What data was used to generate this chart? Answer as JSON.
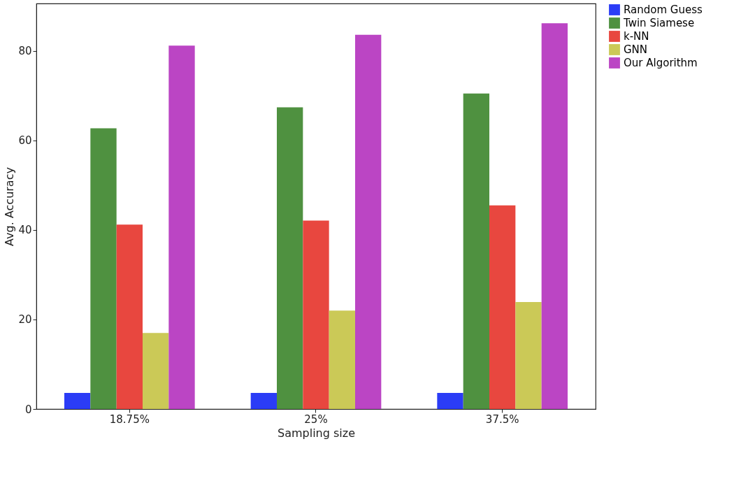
{
  "chart_data": {
    "type": "bar",
    "xlabel": "Sampling size",
    "ylabel": "Avg. Accuracy",
    "categories": [
      "18.75%",
      "25%",
      "37.5%"
    ],
    "series": [
      {
        "name": "Random Guess",
        "color": "#2b3cf6",
        "values": [
          3.6,
          3.6,
          3.6
        ]
      },
      {
        "name": "Twin Siamese",
        "color": "#4f9140",
        "values": [
          62.7,
          67.4,
          70.5
        ]
      },
      {
        "name": "k-NN",
        "color": "#e8473f",
        "values": [
          41.2,
          42.1,
          45.5
        ]
      },
      {
        "name": "GNN",
        "color": "#cbc957",
        "values": [
          17.0,
          22.0,
          23.9
        ]
      },
      {
        "name": "Our Algorithm",
        "color": "#bb45c4",
        "values": [
          81.2,
          83.6,
          86.2
        ]
      }
    ],
    "ylim": [
      0,
      90.6
    ],
    "yticks": [
      0,
      20,
      40,
      60,
      80
    ],
    "grid": false,
    "legend": "right"
  }
}
